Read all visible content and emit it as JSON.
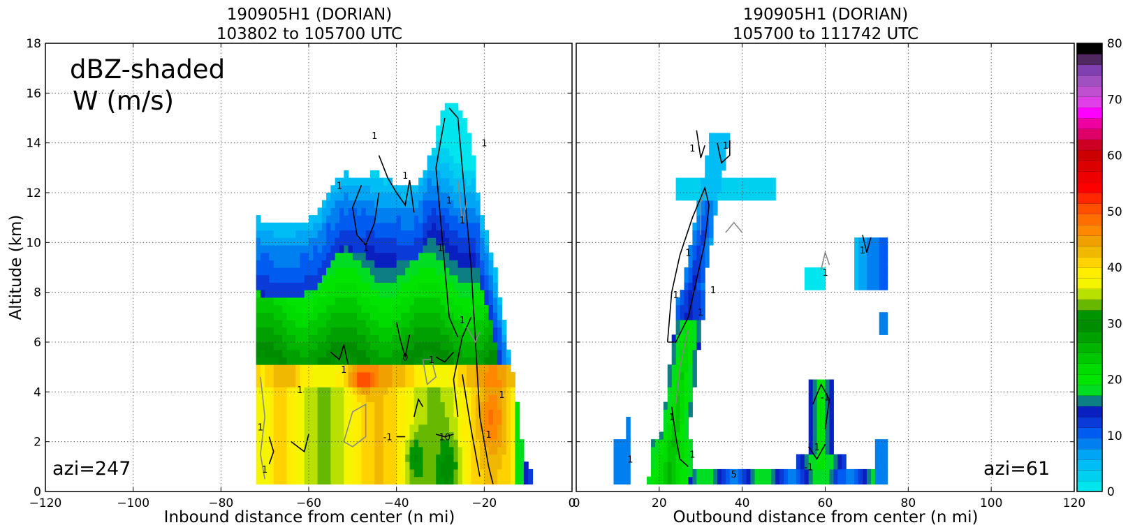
{
  "colorbar": {
    "ticks": [
      0,
      10,
      20,
      30,
      40,
      50,
      60,
      70,
      80
    ],
    "colors": [
      "#00e5ee",
      "#00d0f0",
      "#00bdf5",
      "#00a5f5",
      "#0080f0",
      "#005cf0",
      "#0a3ad8",
      "#0a1fc0",
      "#0d7f84",
      "#00dd22",
      "#00e400",
      "#00dc00",
      "#00c800",
      "#00b400",
      "#00a000",
      "#008c00",
      "#009500",
      "#66b800",
      "#b8e000",
      "#f5f500",
      "#ffee00",
      "#ffd200",
      "#f0b800",
      "#f0a000",
      "#ff8800",
      "#ff6e00",
      "#ff5000",
      "#ff2800",
      "#ff0000",
      "#ee0000",
      "#dd0000",
      "#cc0000",
      "#cc0022",
      "#dd0066",
      "#ee00a0",
      "#ff00ff",
      "#e040e8",
      "#c050d0",
      "#a050c0",
      "#8040b0",
      "#502860",
      "#000000"
    ]
  },
  "chart_data": [
    {
      "type": "heatmap",
      "title": "190905H1 (DORIAN)",
      "subtitle": "103802 to 105700 UTC",
      "xlabel": "Inbound distance from center (n mi)",
      "ylabel": "Altitude (km)",
      "xlim": [
        -120,
        0
      ],
      "ylim": [
        0,
        18
      ],
      "x_ticks": [
        -120,
        -100,
        -80,
        -60,
        -40,
        -20,
        0
      ],
      "y_ticks": [
        0,
        2,
        4,
        6,
        8,
        10,
        12,
        14,
        16,
        18
      ],
      "grid": true,
      "annotations": [
        "dBZ-shaded",
        "W (m/s)",
        "azi=247"
      ],
      "contour_labels": [
        {
          "x": -42,
          "y": 2.2,
          "text": "-1"
        },
        {
          "x": -52,
          "y": 4.9,
          "text": "1"
        },
        {
          "x": -38,
          "y": 5.4,
          "text": "0"
        },
        {
          "x": -32,
          "y": 5.3,
          "text": "1"
        },
        {
          "x": -25,
          "y": 6.9,
          "text": "1"
        },
        {
          "x": -30,
          "y": 9.8,
          "text": "1"
        },
        {
          "x": -47,
          "y": 9.8,
          "text": "1"
        },
        {
          "x": -53,
          "y": 12.3,
          "text": "1"
        },
        {
          "x": -38,
          "y": 12.7,
          "text": "1"
        },
        {
          "x": -45,
          "y": 14.3,
          "text": "1"
        },
        {
          "x": -20,
          "y": 14.0,
          "text": "1"
        },
        {
          "x": -28,
          "y": 11.7,
          "text": "1"
        },
        {
          "x": -25,
          "y": 10.9,
          "text": "1"
        },
        {
          "x": -70,
          "y": 0.9,
          "text": "1"
        },
        {
          "x": -71,
          "y": 2.6,
          "text": "1"
        },
        {
          "x": -62,
          "y": 4.1,
          "text": "1"
        },
        {
          "x": -29,
          "y": 2.2,
          "text": "10"
        },
        {
          "x": -19,
          "y": 2.3,
          "text": "1"
        },
        {
          "x": -16,
          "y": 3.9,
          "text": "1"
        }
      ]
    },
    {
      "type": "heatmap",
      "title": "190905H1 (DORIAN)",
      "subtitle": "105700 to 111742 UTC",
      "xlabel": "Outbound distance from center (n mi)",
      "xlim": [
        0,
        120
      ],
      "ylim": [
        0,
        18
      ],
      "x_ticks": [
        0,
        20,
        40,
        60,
        80,
        100,
        120
      ],
      "grid": true,
      "annotations": [
        "azi=61"
      ],
      "contour_labels": [
        {
          "x": 23,
          "y": 3.0,
          "text": "1"
        },
        {
          "x": 28,
          "y": 1.5,
          "text": "1"
        },
        {
          "x": 24,
          "y": 7.9,
          "text": "1"
        },
        {
          "x": 30,
          "y": 7.2,
          "text": "1"
        },
        {
          "x": 33,
          "y": 8.1,
          "text": "1"
        },
        {
          "x": 27,
          "y": 9.6,
          "text": "1"
        },
        {
          "x": 28,
          "y": 13.8,
          "text": "1"
        },
        {
          "x": 36,
          "y": 13.9,
          "text": "1"
        },
        {
          "x": 60,
          "y": 3.8,
          "text": "-1"
        },
        {
          "x": 58,
          "y": 1.8,
          "text": "1"
        },
        {
          "x": 56,
          "y": 1.0,
          "text": "-1"
        },
        {
          "x": 38,
          "y": 0.7,
          "text": "5"
        },
        {
          "x": 69,
          "y": 9.7,
          "text": "1"
        },
        {
          "x": 60,
          "y": 8.8,
          "text": "1"
        },
        {
          "x": 13,
          "y": 1.3,
          "text": "1"
        }
      ]
    }
  ]
}
